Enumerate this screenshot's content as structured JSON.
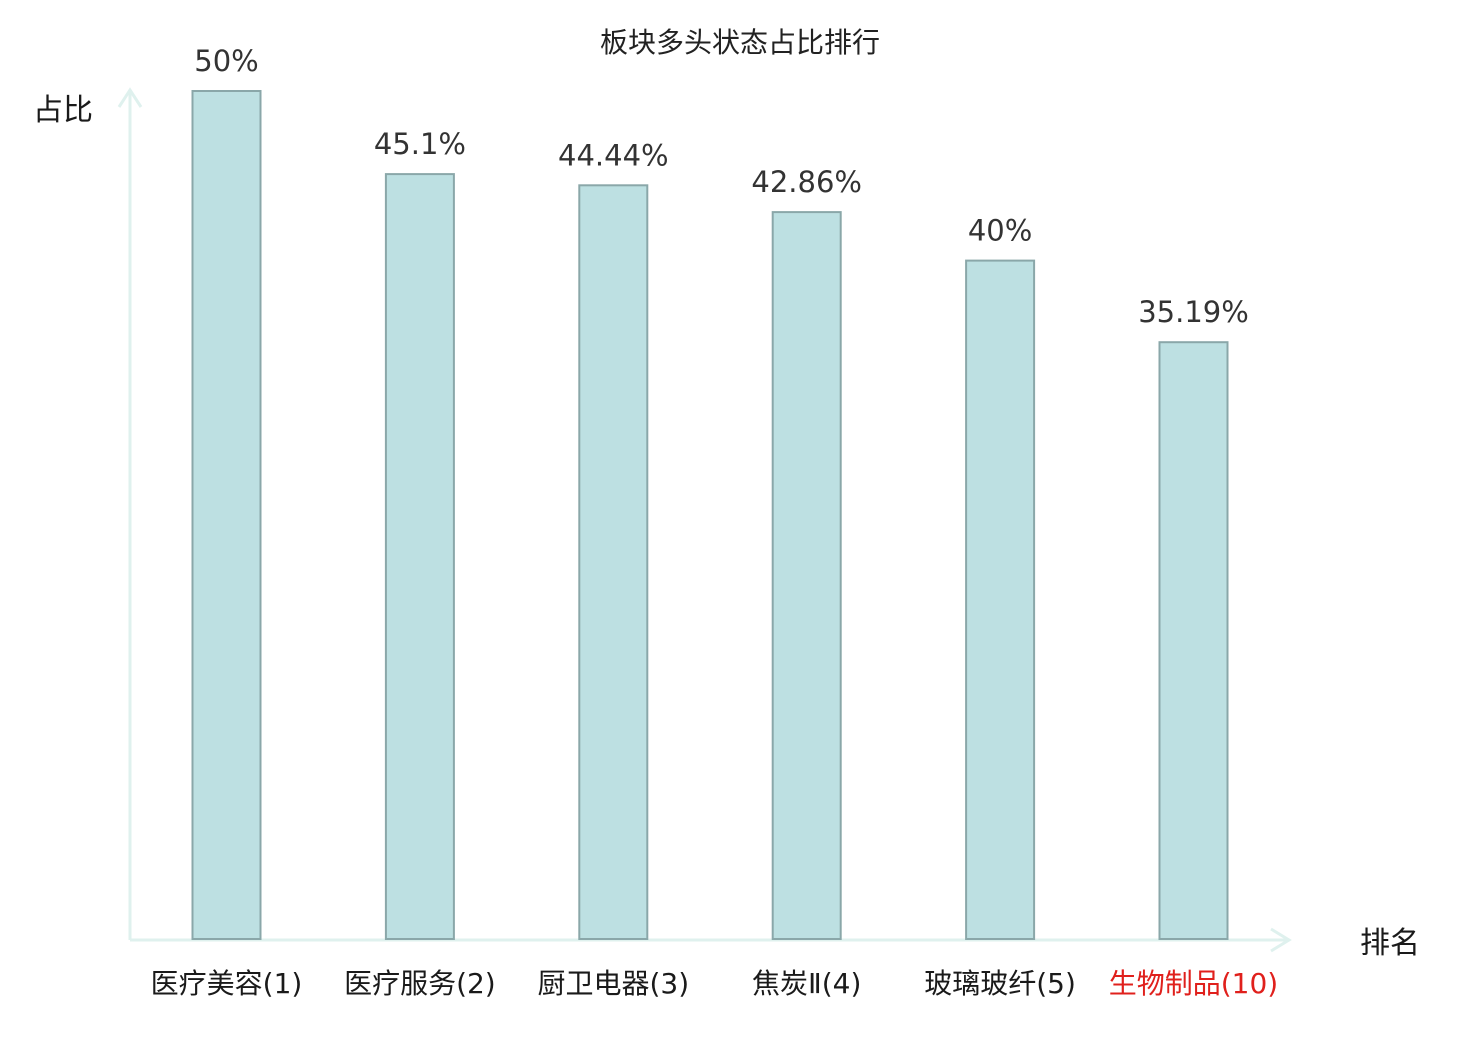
{
  "chart_data": {
    "type": "bar",
    "title": "板块多头状态占比排行",
    "ylabel": "占比",
    "xlabel": "排名",
    "categories": [
      "医疗美容(1)",
      "医疗服务(2)",
      "厨卫电器(3)",
      "焦炭Ⅱ(4)",
      "玻璃玻纤(5)",
      "生物制品(10)"
    ],
    "values": [
      50,
      45.1,
      44.44,
      42.86,
      40,
      35.19
    ],
    "value_labels": [
      "50%",
      "45.1%",
      "44.44%",
      "42.86%",
      "40%",
      "35.19%"
    ],
    "highlight_index": 5,
    "ylim": [
      0,
      50
    ],
    "grid": false,
    "colors": {
      "bar_fill": "#bde0e2",
      "bar_stroke": "#8aa7a9",
      "axis": "#dff1ee",
      "label": "#1a1a1a",
      "highlight_label": "#e0201c"
    }
  }
}
